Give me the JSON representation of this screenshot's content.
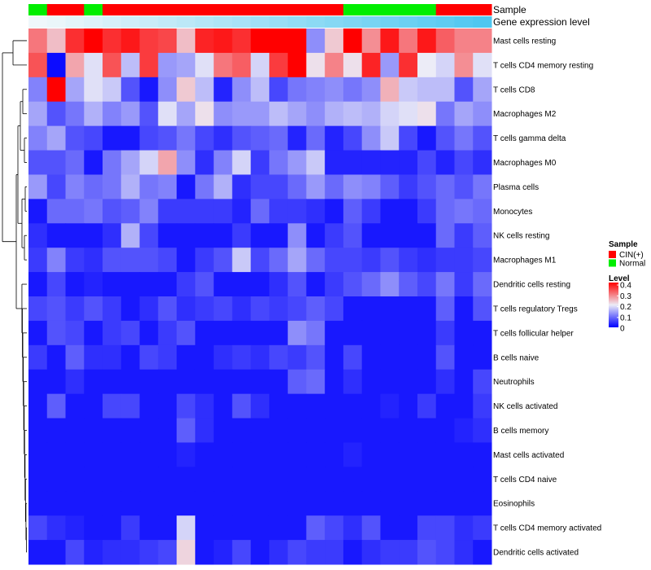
{
  "chart_data": {
    "type": "heatmap",
    "annotation_labels": {
      "sample": "Sample",
      "gene_expression": "Gene expression level"
    },
    "sample_groups": [
      "Normal",
      "CIN(+)",
      "CIN(+)",
      "Normal",
      "CIN(+)",
      "CIN(+)",
      "CIN(+)",
      "CIN(+)",
      "CIN(+)",
      "CIN(+)",
      "CIN(+)",
      "CIN(+)",
      "CIN(+)",
      "CIN(+)",
      "CIN(+)",
      "CIN(+)",
      "CIN(+)",
      "Normal",
      "Normal",
      "Normal",
      "Normal",
      "Normal",
      "CIN(+)",
      "CIN(+)",
      "CIN(+)"
    ],
    "gene_expression_level": [
      0.02,
      0.05,
      0.09,
      0.13,
      0.17,
      0.21,
      0.25,
      0.29,
      0.33,
      0.37,
      0.41,
      0.45,
      0.5,
      0.54,
      0.58,
      0.62,
      0.66,
      0.7,
      0.74,
      0.78,
      0.82,
      0.86,
      0.9,
      0.95,
      0.99
    ],
    "rows": [
      "Mast cells resting",
      "T cells CD4 memory resting",
      "T cells CD8",
      "Macrophages M2",
      "T cells gamma delta",
      "Macrophages M0",
      "Plasma cells",
      "Monocytes",
      "NK cells resting",
      "Macrophages M1",
      "Dendritic cells resting",
      "T cells regulatory  Tregs",
      "T cells follicular helper",
      "B cells naive",
      "Neutrophils",
      "NK cells activated",
      "B cells memory",
      "Mast cells activated",
      "T cells CD4 naive",
      "Eosinophils",
      "T cells CD4 memory activated",
      "Dendritic cells activated"
    ],
    "values": [
      [
        0.3,
        0.24,
        0.36,
        0.4,
        0.36,
        0.38,
        0.35,
        0.34,
        0.24,
        0.37,
        0.38,
        0.36,
        0.4,
        0.4,
        0.4,
        0.12,
        0.23,
        0.4,
        0.28,
        0.38,
        0.3,
        0.38,
        0.32,
        0.29,
        0.29
      ],
      [
        0.33,
        0.01,
        0.26,
        0.19,
        0.33,
        0.16,
        0.35,
        0.13,
        0.14,
        0.19,
        0.3,
        0.32,
        0.18,
        0.35,
        0.4,
        0.21,
        0.29,
        0.21,
        0.37,
        0.13,
        0.36,
        0.2,
        0.18,
        0.28,
        0.19
      ],
      [
        0.11,
        0.4,
        0.14,
        0.19,
        0.17,
        0.07,
        0.02,
        0.12,
        0.23,
        0.16,
        0.03,
        0.12,
        0.16,
        0.06,
        0.1,
        0.11,
        0.12,
        0.1,
        0.12,
        0.25,
        0.17,
        0.16,
        0.16,
        0.07,
        0.14
      ],
      [
        0.14,
        0.07,
        0.1,
        0.15,
        0.11,
        0.13,
        0.07,
        0.19,
        0.14,
        0.21,
        0.12,
        0.13,
        0.13,
        0.16,
        0.14,
        0.12,
        0.15,
        0.16,
        0.15,
        0.18,
        0.19,
        0.21,
        0.1,
        0.14,
        0.12
      ],
      [
        0.11,
        0.14,
        0.07,
        0.06,
        0.02,
        0.02,
        0.06,
        0.07,
        0.1,
        0.06,
        0.04,
        0.07,
        0.08,
        0.09,
        0.03,
        0.09,
        0.03,
        0.06,
        0.12,
        0.17,
        0.06,
        0.02,
        0.07,
        0.1,
        0.07
      ],
      [
        0.07,
        0.07,
        0.09,
        0.02,
        0.1,
        0.14,
        0.18,
        0.26,
        0.12,
        0.04,
        0.11,
        0.18,
        0.05,
        0.1,
        0.13,
        0.17,
        0.03,
        0.03,
        0.03,
        0.03,
        0.03,
        0.06,
        0.03,
        0.06,
        0.04
      ],
      [
        0.13,
        0.06,
        0.11,
        0.09,
        0.1,
        0.15,
        0.1,
        0.11,
        0.02,
        0.1,
        0.15,
        0.04,
        0.06,
        0.06,
        0.09,
        0.13,
        0.09,
        0.12,
        0.11,
        0.08,
        0.05,
        0.07,
        0.09,
        0.07,
        0.1
      ],
      [
        0.02,
        0.09,
        0.09,
        0.1,
        0.07,
        0.08,
        0.11,
        0.05,
        0.05,
        0.05,
        0.05,
        0.03,
        0.09,
        0.05,
        0.05,
        0.04,
        0.02,
        0.08,
        0.05,
        0.02,
        0.02,
        0.05,
        0.09,
        0.1,
        0.09
      ],
      [
        0.04,
        0.02,
        0.02,
        0.02,
        0.04,
        0.15,
        0.06,
        0.02,
        0.02,
        0.02,
        0.02,
        0.05,
        0.02,
        0.02,
        0.12,
        0.02,
        0.05,
        0.07,
        0.02,
        0.02,
        0.02,
        0.02,
        0.09,
        0.05,
        0.08
      ],
      [
        0.05,
        0.11,
        0.05,
        0.04,
        0.07,
        0.07,
        0.07,
        0.06,
        0.02,
        0.05,
        0.07,
        0.17,
        0.06,
        0.09,
        0.14,
        0.09,
        0.06,
        0.06,
        0.05,
        0.07,
        0.05,
        0.04,
        0.05,
        0.05,
        0.06
      ],
      [
        0.02,
        0.06,
        0.02,
        0.03,
        0.02,
        0.02,
        0.02,
        0.02,
        0.05,
        0.07,
        0.02,
        0.02,
        0.02,
        0.04,
        0.07,
        0.02,
        0.05,
        0.07,
        0.09,
        0.12,
        0.08,
        0.06,
        0.1,
        0.05,
        0.09
      ],
      [
        0.06,
        0.07,
        0.05,
        0.07,
        0.05,
        0.02,
        0.04,
        0.07,
        0.04,
        0.05,
        0.06,
        0.04,
        0.06,
        0.05,
        0.06,
        0.08,
        0.06,
        0.02,
        0.02,
        0.02,
        0.02,
        0.02,
        0.08,
        0.02,
        0.07
      ],
      [
        0.02,
        0.07,
        0.06,
        0.02,
        0.05,
        0.06,
        0.02,
        0.05,
        0.07,
        0.02,
        0.02,
        0.02,
        0.02,
        0.02,
        0.12,
        0.1,
        0.02,
        0.02,
        0.02,
        0.02,
        0.02,
        0.02,
        0.05,
        0.02,
        0.02
      ],
      [
        0.05,
        0.02,
        0.08,
        0.04,
        0.04,
        0.02,
        0.06,
        0.05,
        0.02,
        0.02,
        0.04,
        0.05,
        0.04,
        0.06,
        0.05,
        0.07,
        0.02,
        0.06,
        0.02,
        0.02,
        0.02,
        0.02,
        0.07,
        0.02,
        0.02
      ],
      [
        0.02,
        0.02,
        0.04,
        0.02,
        0.02,
        0.02,
        0.02,
        0.02,
        0.02,
        0.02,
        0.02,
        0.02,
        0.02,
        0.02,
        0.08,
        0.09,
        0.02,
        0.04,
        0.02,
        0.02,
        0.02,
        0.02,
        0.04,
        0.02,
        0.06
      ],
      [
        0.02,
        0.08,
        0.02,
        0.02,
        0.06,
        0.06,
        0.02,
        0.02,
        0.06,
        0.04,
        0.02,
        0.07,
        0.04,
        0.02,
        0.02,
        0.02,
        0.02,
        0.02,
        0.02,
        0.03,
        0.02,
        0.05,
        0.02,
        0.02,
        0.05
      ],
      [
        0.02,
        0.02,
        0.02,
        0.02,
        0.02,
        0.02,
        0.02,
        0.02,
        0.08,
        0.04,
        0.02,
        0.02,
        0.02,
        0.02,
        0.02,
        0.02,
        0.02,
        0.02,
        0.02,
        0.02,
        0.02,
        0.02,
        0.02,
        0.03,
        0.04
      ],
      [
        0.02,
        0.02,
        0.02,
        0.02,
        0.02,
        0.02,
        0.02,
        0.02,
        0.03,
        0.02,
        0.02,
        0.02,
        0.02,
        0.02,
        0.02,
        0.02,
        0.02,
        0.03,
        0.02,
        0.02,
        0.02,
        0.02,
        0.02,
        0.02,
        0.02
      ],
      [
        0.02,
        0.02,
        0.02,
        0.02,
        0.02,
        0.02,
        0.02,
        0.02,
        0.02,
        0.02,
        0.02,
        0.02,
        0.02,
        0.02,
        0.02,
        0.02,
        0.02,
        0.02,
        0.02,
        0.02,
        0.02,
        0.02,
        0.02,
        0.02,
        0.02
      ],
      [
        0.02,
        0.02,
        0.02,
        0.02,
        0.02,
        0.02,
        0.02,
        0.02,
        0.02,
        0.02,
        0.02,
        0.02,
        0.02,
        0.02,
        0.02,
        0.02,
        0.02,
        0.02,
        0.02,
        0.02,
        0.02,
        0.02,
        0.02,
        0.02,
        0.02
      ],
      [
        0.06,
        0.04,
        0.03,
        0.02,
        0.02,
        0.05,
        0.02,
        0.02,
        0.18,
        0.02,
        0.02,
        0.02,
        0.02,
        0.02,
        0.02,
        0.08,
        0.06,
        0.04,
        0.07,
        0.02,
        0.02,
        0.06,
        0.06,
        0.04,
        0.05
      ],
      [
        0.02,
        0.02,
        0.06,
        0.03,
        0.04,
        0.04,
        0.05,
        0.06,
        0.22,
        0.02,
        0.03,
        0.06,
        0.02,
        0.04,
        0.06,
        0.05,
        0.05,
        0.02,
        0.04,
        0.05,
        0.05,
        0.07,
        0.06,
        0.04,
        0.02
      ]
    ],
    "legend": {
      "sample_title": "Sample",
      "sample_items": [
        {
          "label": "CIN(+)",
          "color": "#ff0000"
        },
        {
          "label": "Normal",
          "color": "#00ee00"
        }
      ],
      "level_title": "Level",
      "level_ticks": [
        "0.4",
        "0.3",
        "0.2",
        "0.1",
        "0"
      ],
      "level_range": [
        0,
        0.4
      ]
    },
    "colors": {
      "low": "#0000ff",
      "mid": "#ececf7",
      "high": "#ff0000",
      "expr_low": "#f2f8fb",
      "expr_high": "#4dc7f0"
    }
  }
}
